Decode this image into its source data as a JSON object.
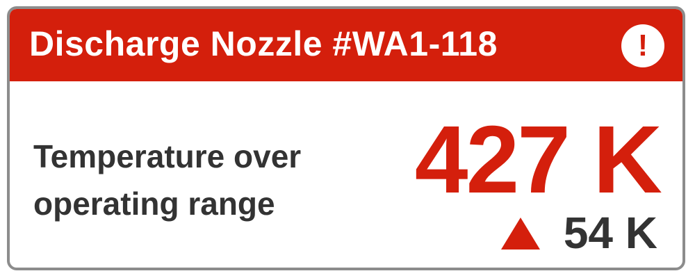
{
  "card": {
    "title": "Discharge Nozzle #WA1-118",
    "alert_icon_symbol": "!",
    "metric_label": "Temperature over operating range",
    "value": "427 K",
    "delta": "54 K",
    "delta_direction": "up"
  },
  "icons": {
    "alert": "alert-icon",
    "delta": "triangle-up-icon"
  },
  "colors": {
    "accent_red": "#d41f0c",
    "text_dark": "#333333",
    "border_gray": "#8c8c8c"
  }
}
